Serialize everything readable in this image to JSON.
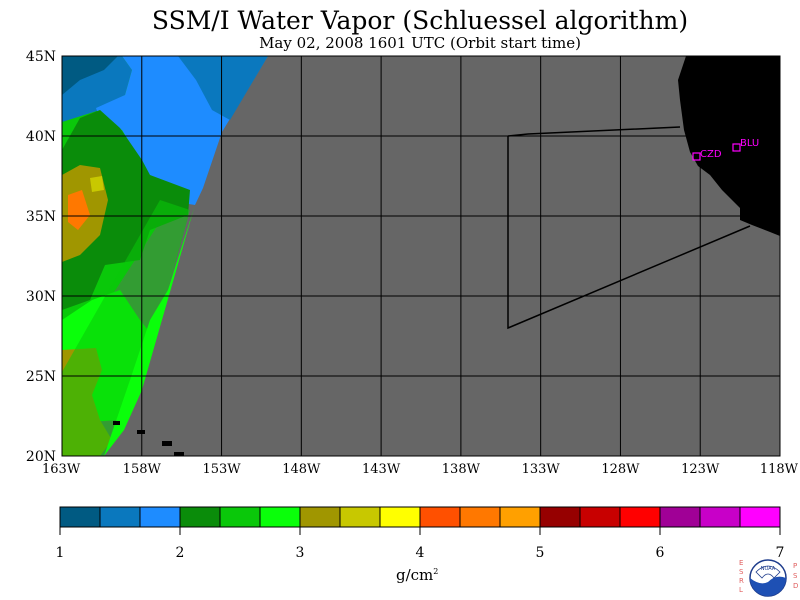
{
  "title": "SSM/I Water Vapor (Schluessel algorithm)",
  "subtitle": "May 02, 2008  1601 UTC  (Orbit start time)",
  "latitude_labels": [
    "45N",
    "40N",
    "35N",
    "30N",
    "25N",
    "20N"
  ],
  "longitude_labels": [
    "163W",
    "158W",
    "153W",
    "148W",
    "143W",
    "138W",
    "133W",
    "128W",
    "123W",
    "118W"
  ],
  "stations": [
    {
      "code": "CZD"
    },
    {
      "code": "BLU"
    }
  ],
  "colorbar": {
    "tick_labels": [
      "1",
      "2",
      "3",
      "4",
      "5",
      "6",
      "7"
    ],
    "unit": "g/cm",
    "unit_exponent": "2",
    "colors": [
      "#005a82",
      "#0a78be",
      "#1e8cff",
      "#0a8c0a",
      "#0ac80a",
      "#0aff0a",
      "#a09600",
      "#c8c800",
      "#ffff00",
      "#ff5000",
      "#ff7800",
      "#ffa000",
      "#960000",
      "#c80000",
      "#ff0000",
      "#a00096",
      "#c800c8",
      "#ff00ff"
    ]
  },
  "colors": {
    "no_data_gray": "#666666",
    "land": "#000000",
    "grid": "#000000",
    "station_marker": "#ff00ff"
  },
  "logo": {
    "left_letters": "ESRL",
    "right_letters": "PSD",
    "center_text": "NOAA"
  }
}
